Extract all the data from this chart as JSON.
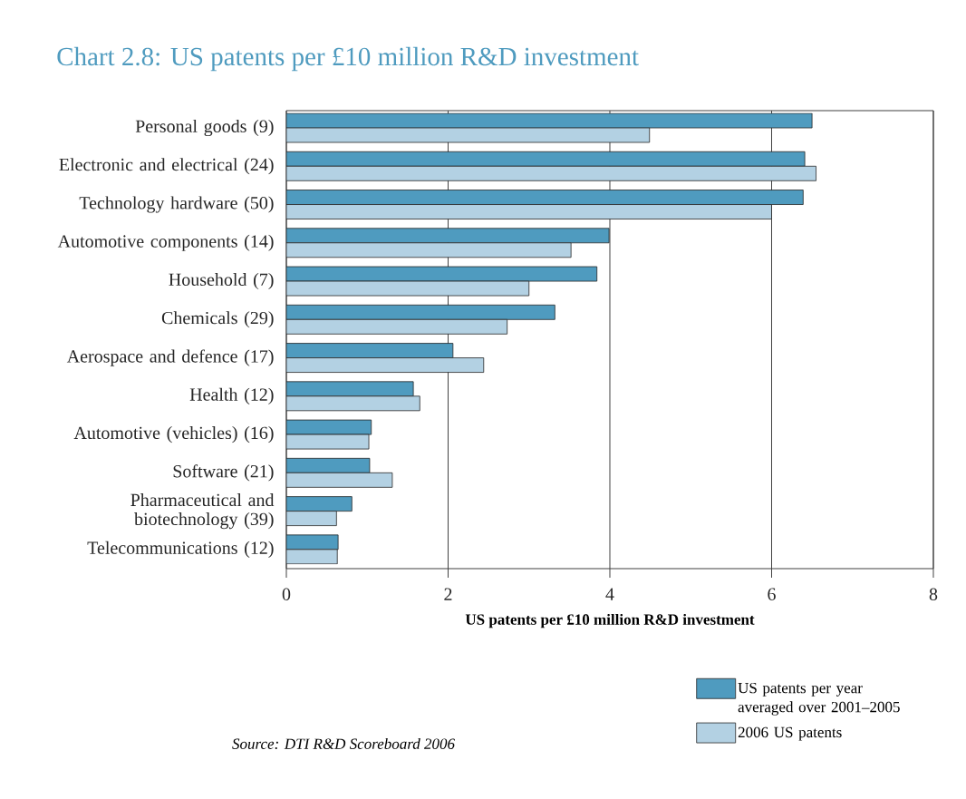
{
  "chart_data": {
    "type": "bar",
    "orientation": "horizontal",
    "title": "Chart 2.8: US patents per £10 million R&D investment",
    "xlabel": "US patents per £10 million R&D investment",
    "categories": [
      "Personal goods (9)",
      "Electronic and electrical (24)",
      "Technology hardware (50)",
      "Automotive components (14)",
      "Household (7)",
      "Chemicals (29)",
      "Aerospace and defence (17)",
      "Health (12)",
      "Automotive (vehicles) (16)",
      "Software (21)",
      "Pharmaceutical and biotechnology (39)",
      "Telecommunications (12)"
    ],
    "series": [
      {
        "name": "US patents per year averaged over 2001–2005",
        "color": "#4f9bbf",
        "values": [
          6.5,
          6.41,
          6.39,
          3.99,
          3.84,
          3.32,
          2.06,
          1.57,
          1.05,
          1.03,
          0.81,
          0.64
        ]
      },
      {
        "name": "2006 US patents",
        "color": "#b3d1e3",
        "values": [
          4.49,
          6.55,
          6.0,
          3.52,
          3.0,
          2.73,
          2.44,
          1.65,
          1.02,
          1.31,
          0.62,
          0.63
        ]
      }
    ],
    "xlim": [
      0,
      8
    ],
    "xticks": [
      0,
      2,
      4,
      6,
      8
    ],
    "grid": "x",
    "legend": "bottom right",
    "annotations": [
      "Source: DTI R&D Scoreboard 2006"
    ]
  }
}
